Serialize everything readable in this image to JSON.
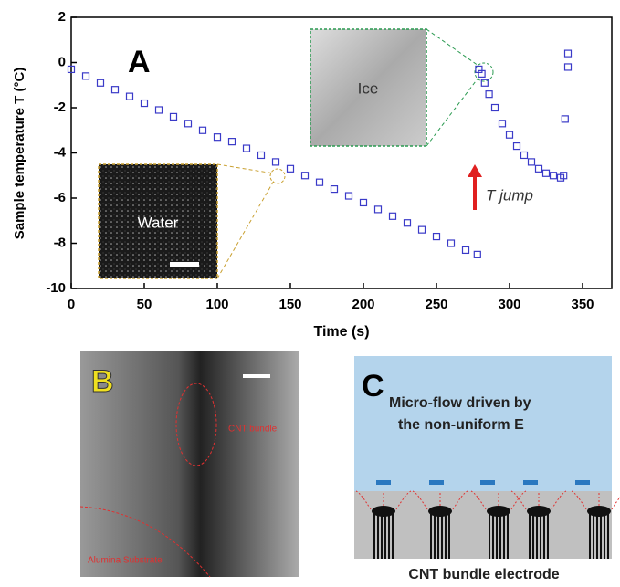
{
  "chart_data": {
    "type": "scatter",
    "panel_label": "A",
    "x_label": "Time (s)",
    "y_label": "Sample temperature T (°C)",
    "x": [
      0,
      10,
      20,
      30,
      40,
      50,
      60,
      70,
      80,
      90,
      100,
      110,
      120,
      130,
      140,
      150,
      160,
      170,
      180,
      190,
      200,
      210,
      220,
      230,
      240,
      250,
      260,
      270,
      278,
      279,
      281,
      283,
      286,
      290,
      295,
      300,
      305,
      310,
      315,
      320,
      325,
      330,
      335,
      337,
      340,
      340,
      338
    ],
    "values": [
      -0.3,
      -0.6,
      -0.9,
      -1.2,
      -1.5,
      -1.8,
      -2.1,
      -2.4,
      -2.7,
      -3.0,
      -3.3,
      -3.5,
      -3.8,
      -4.1,
      -4.4,
      -4.7,
      -5.0,
      -5.3,
      -5.6,
      -5.9,
      -6.2,
      -6.5,
      -6.8,
      -7.1,
      -7.4,
      -7.7,
      -8.0,
      -8.3,
      -8.5,
      -0.3,
      -0.5,
      -0.9,
      -1.4,
      -2.0,
      -2.7,
      -3.2,
      -3.7,
      -4.1,
      -4.4,
      -4.7,
      -4.9,
      -5.0,
      -5.1,
      -5.0,
      0.4,
      -0.2,
      -2.5
    ],
    "color": "#3a3ac8",
    "xlim": [
      0,
      370
    ],
    "ylim": [
      -10,
      2
    ],
    "xticks": [
      0,
      50,
      100,
      150,
      200,
      250,
      300,
      350
    ],
    "yticks": [
      -10,
      -8,
      -6,
      -4,
      -2,
      0,
      2
    ],
    "annotations": {
      "water": "Water",
      "ice": "Ice",
      "t_jump": "T jump"
    }
  },
  "panel_b": {
    "label": "B",
    "cnt_bundle": "CNT bundle",
    "substrate": "Alumina Substrate"
  },
  "panel_c": {
    "label": "C",
    "line1": "Micro-flow driven by",
    "line2": "the non-uniform E",
    "caption": "CNT bundle electrode"
  }
}
